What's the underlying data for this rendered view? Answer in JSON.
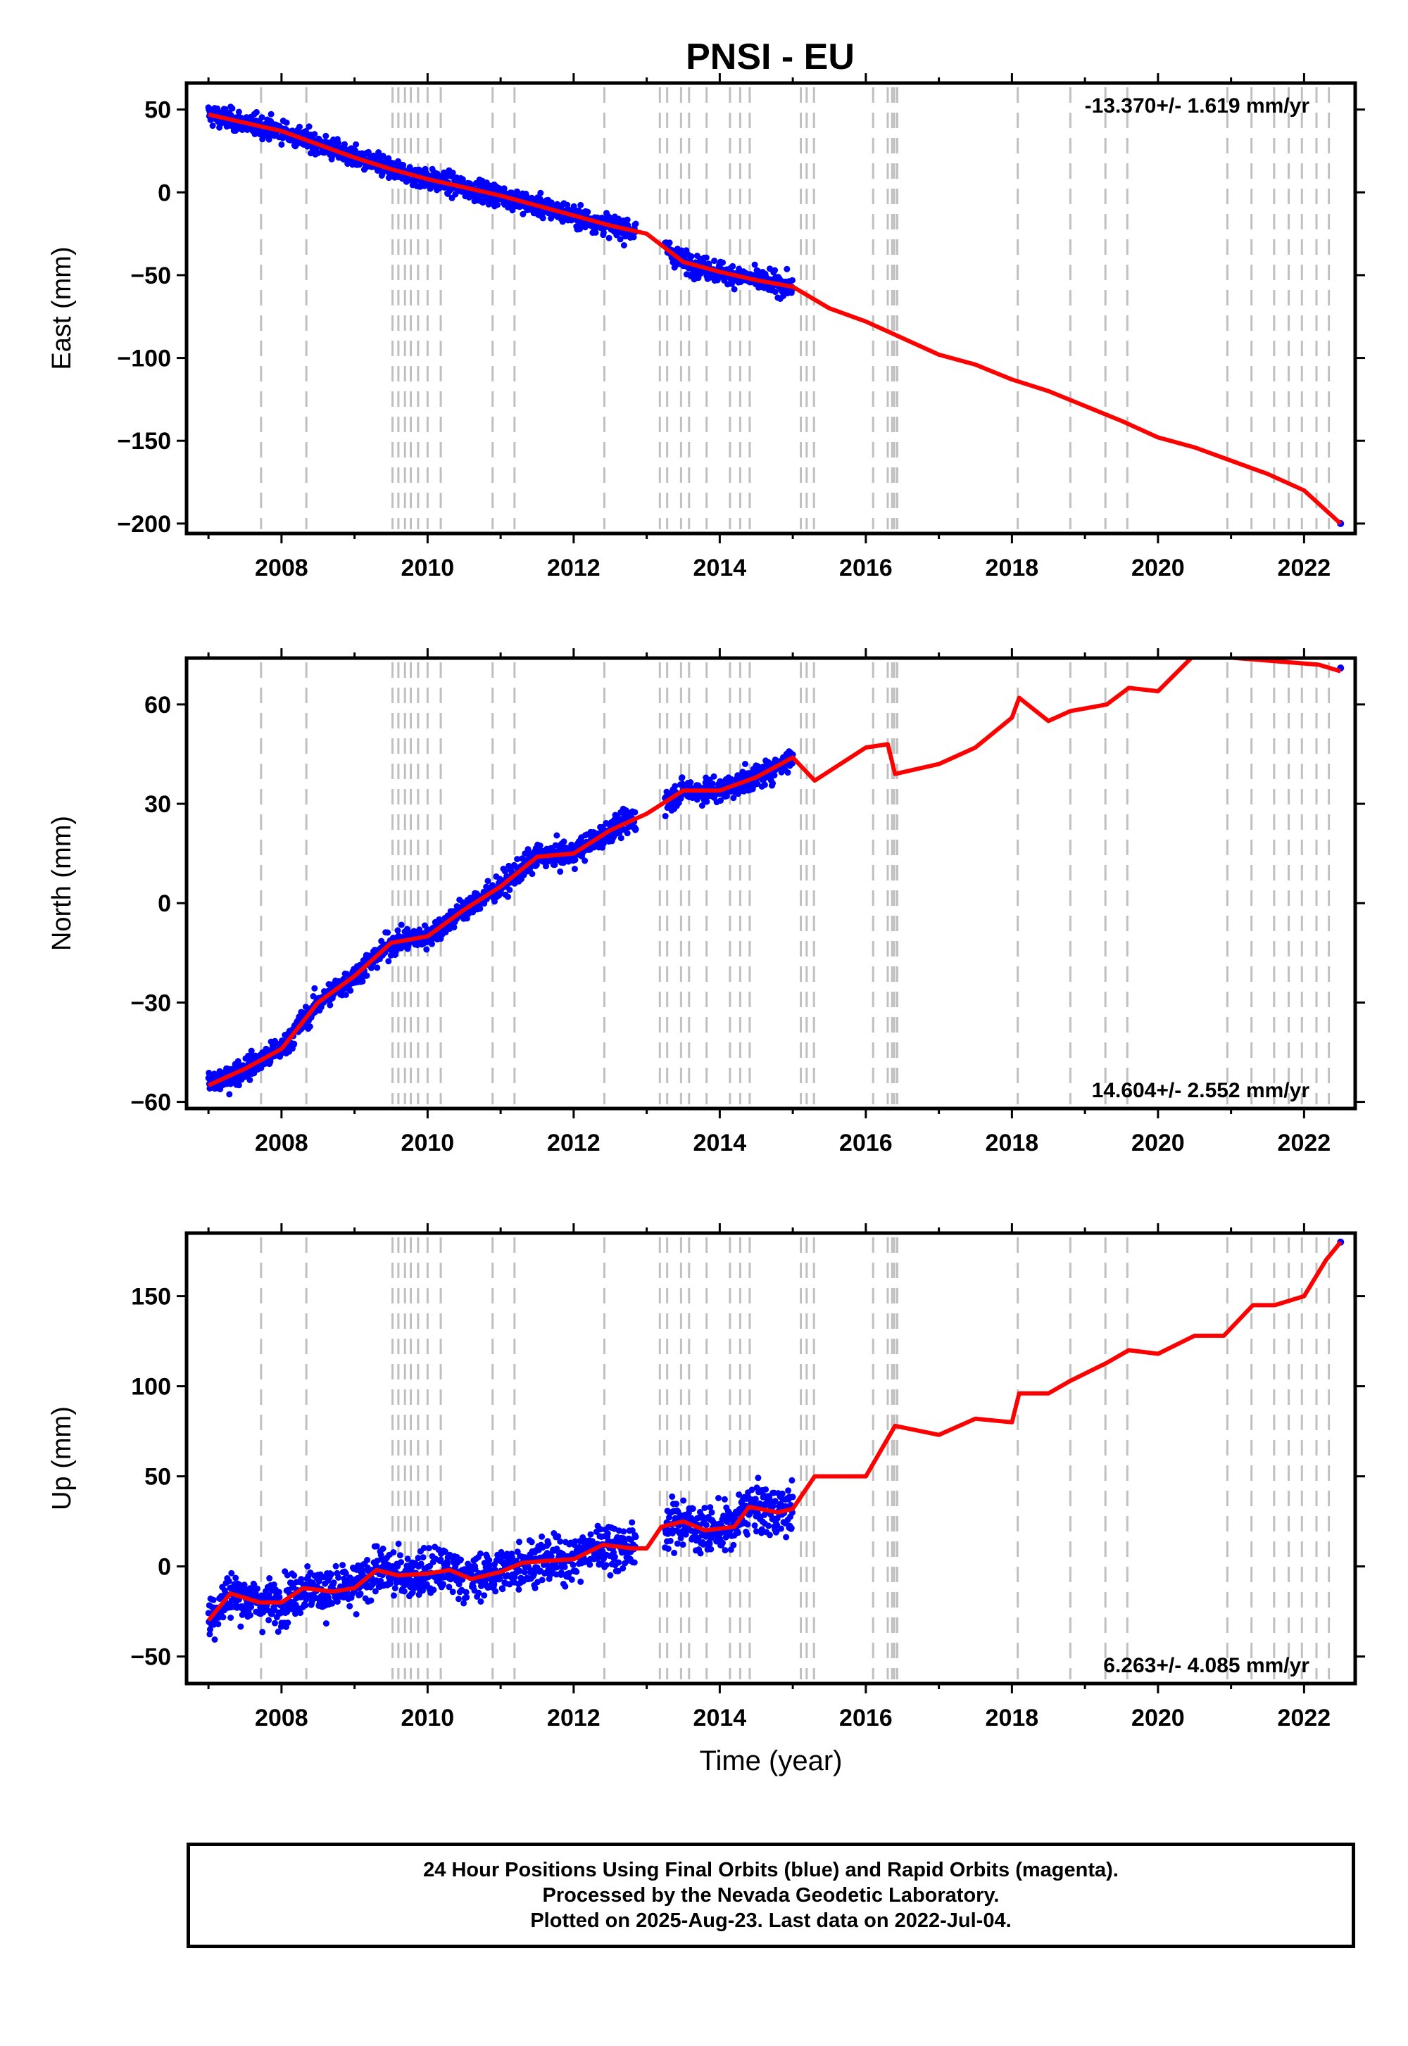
{
  "figure": {
    "title": "PNSI - EU",
    "xlabel": "Time (year)",
    "footer": [
      "24 Hour Positions Using Final Orbits (blue) and Rapid Orbits (magenta).",
      "Processed by the Nevada Geodetic Laboratory.",
      "Plotted on 2025-Aug-23. Last data on 2022-Jul-04."
    ],
    "colors": {
      "observations": "#0000ff",
      "model": "#ff0000",
      "event_lines": "#c0c0c0",
      "frame": "#000000"
    }
  },
  "chart_data": [
    {
      "type": "scatter",
      "panel": "east",
      "ylabel": "East (mm)",
      "rate_label": "-13.370+/- 1.619 mm/yr",
      "rate_position": "top-right",
      "xlim": [
        2006.7,
        2022.7
      ],
      "ylim": [
        -206,
        66
      ],
      "xticks": [
        2008,
        2010,
        2012,
        2014,
        2016,
        2018,
        2020,
        2022
      ],
      "yticks": [
        -200,
        -150,
        -100,
        -50,
        0,
        50
      ],
      "grid": false,
      "event_lines": [
        2007.72,
        2008.34,
        2009.52,
        2009.6,
        2009.69,
        2009.77,
        2009.87,
        2010.0,
        2010.18,
        2010.89,
        2011.19,
        2012.42,
        2013.18,
        2013.28,
        2013.47,
        2013.58,
        2013.82,
        2014.14,
        2014.28,
        2014.41,
        2015.11,
        2015.19,
        2015.29,
        2016.1,
        2016.3,
        2016.36,
        2016.39,
        2016.43,
        2018.08,
        2018.8,
        2019.28,
        2019.58,
        2020.95,
        2021.28,
        2021.59,
        2021.79,
        2021.97,
        2022.17,
        2022.34
      ],
      "model_breakpoints": {
        "x": [
          2007.0,
          2007.5,
          2008.0,
          2008.5,
          2009.0,
          2009.5,
          2010.0,
          2010.5,
          2011.0,
          2011.5,
          2012.0,
          2012.5,
          2013.0,
          2013.5,
          2014.0,
          2014.5,
          2015.0,
          2015.5,
          2016.0,
          2016.4,
          2017.0,
          2017.5,
          2018.0,
          2018.5,
          2019.0,
          2019.5,
          2020.0,
          2020.5,
          2021.0,
          2021.5,
          2022.0,
          2022.5
        ],
        "y": [
          47,
          42,
          37,
          29,
          21,
          14,
          8,
          3,
          -2,
          -8,
          -14,
          -20,
          -25,
          -42,
          -48,
          -53,
          -57,
          -70,
          -78,
          -86,
          -98,
          -104,
          -113,
          -120,
          -129,
          -138,
          -148,
          -154,
          -162,
          -170,
          -180,
          -200
        ]
      },
      "observation_span": [
        2007.0,
        2015.0
      ],
      "observation_scatter_mm": 4.5,
      "last_point": [
        2022.5,
        -200
      ]
    },
    {
      "type": "scatter",
      "panel": "north",
      "ylabel": "North (mm)",
      "rate_label": "14.604+/- 2.552 mm/yr",
      "rate_position": "bottom-right",
      "xlim": [
        2006.7,
        2022.7
      ],
      "ylim": [
        -62,
        74
      ],
      "xticks": [
        2008,
        2010,
        2012,
        2014,
        2016,
        2018,
        2020,
        2022
      ],
      "yticks": [
        -60,
        -30,
        0,
        30,
        60
      ],
      "grid": false,
      "event_lines": [
        2007.72,
        2008.34,
        2009.52,
        2009.6,
        2009.69,
        2009.77,
        2009.87,
        2010.0,
        2010.18,
        2010.89,
        2011.19,
        2012.42,
        2013.18,
        2013.28,
        2013.47,
        2013.58,
        2013.82,
        2014.14,
        2014.28,
        2014.41,
        2015.11,
        2015.19,
        2015.29,
        2016.1,
        2016.3,
        2016.36,
        2016.39,
        2016.43,
        2018.08,
        2018.8,
        2019.28,
        2019.58,
        2020.95,
        2021.28,
        2021.59,
        2021.79,
        2021.97,
        2022.17,
        2022.34
      ],
      "model_breakpoints": {
        "x": [
          2007.0,
          2007.5,
          2008.0,
          2008.5,
          2009.0,
          2009.5,
          2010.0,
          2010.5,
          2011.0,
          2011.5,
          2012.0,
          2012.5,
          2013.0,
          2013.5,
          2014.0,
          2014.5,
          2015.0,
          2015.3,
          2016.0,
          2016.3,
          2016.4,
          2017.0,
          2017.5,
          2018.0,
          2018.1,
          2018.5,
          2018.8,
          2019.3,
          2019.6,
          2020.0,
          2020.5,
          2022.2,
          2022.5
        ],
        "y": [
          -55,
          -50,
          -44,
          -30,
          -22,
          -12,
          -10,
          -2,
          5,
          14,
          15,
          22,
          27,
          34,
          34,
          38,
          44,
          37,
          47,
          48,
          39,
          42,
          47,
          56,
          62,
          55,
          58,
          60,
          65,
          64,
          75,
          72,
          70
        ]
      },
      "observation_span": [
        2007.0,
        2015.0
      ],
      "observation_scatter_mm": 2.6,
      "last_point": [
        2022.5,
        71
      ]
    },
    {
      "type": "scatter",
      "panel": "up",
      "ylabel": "Up (mm)",
      "rate_label": "6.263+/- 4.085 mm/yr",
      "rate_position": "bottom-right",
      "xlim": [
        2006.7,
        2022.7
      ],
      "ylim": [
        -65,
        185
      ],
      "xticks": [
        2008,
        2010,
        2012,
        2014,
        2016,
        2018,
        2020,
        2022
      ],
      "yticks": [
        -50,
        0,
        50,
        100,
        150
      ],
      "grid": false,
      "event_lines": [
        2007.72,
        2008.34,
        2009.52,
        2009.6,
        2009.69,
        2009.77,
        2009.87,
        2010.0,
        2010.18,
        2010.89,
        2011.19,
        2012.42,
        2013.18,
        2013.28,
        2013.47,
        2013.58,
        2013.82,
        2014.14,
        2014.28,
        2014.41,
        2015.11,
        2015.19,
        2015.29,
        2016.1,
        2016.3,
        2016.36,
        2016.39,
        2016.43,
        2018.08,
        2018.8,
        2019.28,
        2019.58,
        2020.95,
        2021.28,
        2021.59,
        2021.79,
        2021.97,
        2022.17,
        2022.34
      ],
      "model_breakpoints": {
        "x": [
          2007.0,
          2007.3,
          2007.7,
          2008.0,
          2008.3,
          2008.7,
          2009.0,
          2009.3,
          2009.6,
          2010.0,
          2010.3,
          2010.6,
          2011.0,
          2011.3,
          2011.6,
          2012.0,
          2012.4,
          2012.8,
          2013.0,
          2013.2,
          2013.5,
          2013.8,
          2014.2,
          2014.4,
          2014.8,
          2015.0,
          2015.3,
          2016.0,
          2016.4,
          2017.0,
          2017.5,
          2018.0,
          2018.1,
          2018.5,
          2018.8,
          2019.3,
          2019.6,
          2020.0,
          2020.5,
          2020.9,
          2021.3,
          2021.6,
          2022.0,
          2022.3,
          2022.5
        ],
        "y": [
          -30,
          -15,
          -20,
          -20,
          -12,
          -14,
          -12,
          -2,
          -5,
          -4,
          -2,
          -7,
          -3,
          2,
          3,
          4,
          12,
          10,
          10,
          22,
          25,
          20,
          22,
          33,
          30,
          32,
          50,
          50,
          78,
          73,
          82,
          80,
          96,
          96,
          103,
          113,
          120,
          118,
          128,
          128,
          145,
          145,
          150,
          170,
          180
        ]
      },
      "observation_span": [
        2007.0,
        2015.0
      ],
      "observation_scatter_mm": 9,
      "last_point": [
        2022.5,
        180
      ]
    }
  ]
}
